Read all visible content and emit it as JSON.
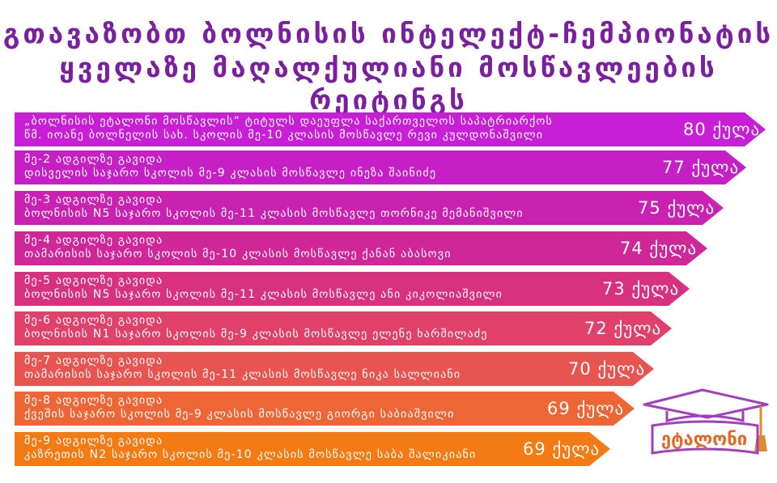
{
  "title": {
    "line1": "გთავაზობთ ბოლნისის ინტელექტ-ჩემპიონატის",
    "line2": "ყველაზე მაღალქულიანი მოსწავლეების რეიტინგს"
  },
  "colors": {
    "title": "#7a1fa0",
    "gradient": [
      "#c81ed6",
      "#d22a9a",
      "#e0456e",
      "#ec6532",
      "#f47a12"
    ]
  },
  "rows": [
    {
      "line1": "„ბოლნისის ეტალონი მოსწავლის“ ტიტულს დაეუფლა საქართველოს საპატრიარქოს",
      "line2": "წმ. იოანე ბოლნელის სახ. სკოლის მე-10 კლასის მოსწავლე რევი კულდონაშვილი",
      "points": "80 ქულა"
    },
    {
      "line1": "მე-2 ადგილზე გავიდა",
      "line2": "დისველის საჯარო სკოლის მე-9 კლასის მოსწავლე ინეზა შაინიძე",
      "points": "77 ქულა"
    },
    {
      "line1": "მე-3 ადგილზე გავიდა",
      "line2": "ბოლნისის N5 საჯარო სკოლის მე-11 კლასის მოსწავლე თორნიკე მემანიშვილი",
      "points": "75 ქულა"
    },
    {
      "line1": "მე-4 ადგილზე გავიდა",
      "line2": "თამარისის საჯარო სკოლის მე-10 კლასის მოსწავლე ქანან აბასოვი",
      "points": "74 ქულა"
    },
    {
      "line1": "მე-5 ადგილზე გავიდა",
      "line2": "ბოლნისის N5 საჯარო სკოლის მე-11 კლასის მოსწავლე ანი კიკოლიაშვილი",
      "points": "73 ქულა"
    },
    {
      "line1": "მე-6 ადგილზე გავიდა",
      "line2": "ბოლნისის N1 საჯარო სკოლის მე-9 კლასის მოსწავლე ელენე ხარშილაძე",
      "points": "72 ქულა"
    },
    {
      "line1": "მე-7 ადგილზე გავიდა",
      "line2": "თამარისის საჯარო სკოლის მე-11 კლასის მოსწავლე ნიკა სალლიანი",
      "points": "70 ქულა"
    },
    {
      "line1": "მე-8 ადგილზე გავიდა",
      "line2": "ქვეშის საჯარო სკოლის მე-9 კლასის მოსწავლე გიორგი საბიაშვილი",
      "points": "69 ქულა"
    },
    {
      "line1": "მე-9 ადგილზე გავიდა",
      "line2": "კაზრეთის N2 საჯარო სკოლის მე-10 კლასის მოსწავლე საბა შალიკიანი",
      "points": "69 ქულა"
    }
  ],
  "logo": {
    "text": "ეტალონი"
  }
}
